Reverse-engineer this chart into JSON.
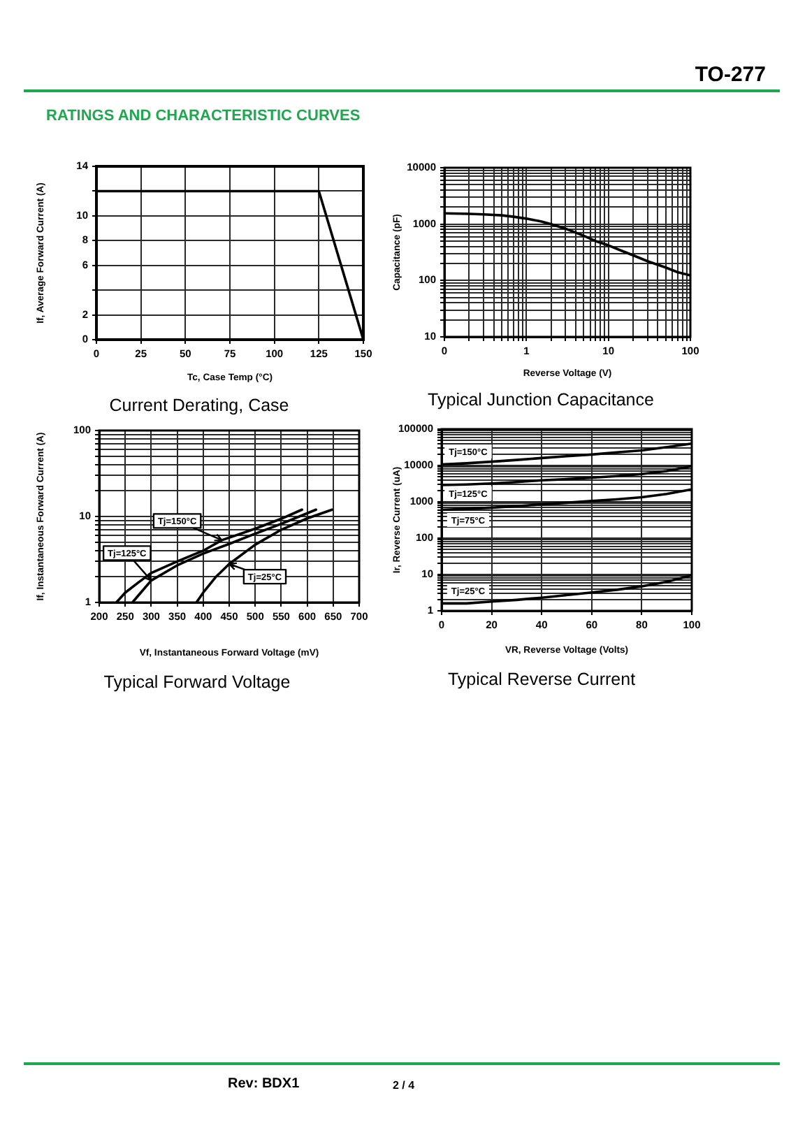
{
  "chart_data": [
    {
      "type": "line",
      "title": "Current Derating, Case",
      "xlabel": "Tc, Case Temp (°C)",
      "ylabel": "If, Average Forward Current (A)",
      "x": [
        0,
        125,
        150
      ],
      "series": [
        {
          "color": "#000000",
          "values": [
            12,
            12,
            0
          ]
        }
      ],
      "xlim": [
        0,
        150
      ],
      "xticks": [
        0,
        25,
        50,
        75,
        100,
        125,
        150
      ],
      "ylim": [
        0,
        14
      ],
      "yticks": [
        0,
        2,
        {
          "value": 4,
          "label": null
        },
        6,
        8,
        10,
        {
          "value": 12,
          "label": null
        },
        14
      ],
      "grid": true,
      "annotations": [
        "TO-277",
        "RATINGS AND CHARACTERISTIC CURVES"
      ]
    },
    {
      "type": "line",
      "title": "Typical Junction Capacitance",
      "xlabel": "Reverse Voltage (V)",
      "ylabel": "Capacitance (pF)",
      "x": [
        0.1,
        0.2,
        0.3,
        0.5,
        0.7,
        1,
        1.5,
        2,
        3,
        5,
        7,
        10,
        15,
        20,
        30,
        50,
        70,
        100
      ],
      "series": [
        {
          "color": "#000000",
          "values": [
            1550,
            1520,
            1490,
            1430,
            1350,
            1250,
            1120,
            1000,
            830,
            620,
            500,
            420,
            330,
            280,
            220,
            170,
            140,
            123
          ]
        }
      ],
      "xlim": [
        0.1,
        100
      ],
      "xticks": [
        {
          "value": 0.1,
          "label": "0"
        },
        {
          "value": 0.2,
          "label": null
        },
        {
          "value": 0.3,
          "label": null
        },
        {
          "value": 0.4,
          "label": null
        },
        {
          "value": 0.5,
          "label": null
        },
        {
          "value": 0.6,
          "label": null
        },
        {
          "value": 0.7,
          "label": null
        },
        {
          "value": 0.8,
          "label": null
        },
        {
          "value": 0.9,
          "label": null
        },
        1,
        {
          "value": 2,
          "label": null
        },
        {
          "value": 3,
          "label": null
        },
        {
          "value": 4,
          "label": null
        },
        {
          "value": 5,
          "label": null
        },
        {
          "value": 6,
          "label": null
        },
        {
          "value": 7,
          "label": null
        },
        {
          "value": 8,
          "label": null
        },
        {
          "value": 9,
          "label": null
        },
        10,
        {
          "value": 20,
          "label": null
        },
        {
          "value": 30,
          "label": null
        },
        {
          "value": 40,
          "label": null
        },
        {
          "value": 50,
          "label": null
        },
        {
          "value": 60,
          "label": null
        },
        {
          "value": 70,
          "label": null
        },
        {
          "value": 80,
          "label": null
        },
        {
          "value": 90,
          "label": null
        },
        100
      ],
      "ylim": [
        10,
        10000
      ],
      "yticks": [
        10,
        {
          "value": 20,
          "label": null
        },
        {
          "value": 30,
          "label": null
        },
        {
          "value": 40,
          "label": null
        },
        {
          "value": 50,
          "label": null
        },
        {
          "value": 60,
          "label": null
        },
        {
          "value": 70,
          "label": null
        },
        {
          "value": 80,
          "label": null
        },
        {
          "value": 90,
          "label": null
        },
        100,
        {
          "value": 200,
          "label": null
        },
        {
          "value": 300,
          "label": null
        },
        {
          "value": 400,
          "label": null
        },
        {
          "value": 500,
          "label": null
        },
        {
          "value": 600,
          "label": null
        },
        {
          "value": 700,
          "label": null
        },
        {
          "value": 800,
          "label": null
        },
        {
          "value": 900,
          "label": null
        },
        1000,
        {
          "value": 2000,
          "label": null
        },
        {
          "value": 3000,
          "label": null
        },
        {
          "value": 4000,
          "label": null
        },
        {
          "value": 5000,
          "label": null
        },
        {
          "value": 6000,
          "label": null
        },
        {
          "value": 7000,
          "label": null
        },
        {
          "value": 8000,
          "label": null
        },
        {
          "value": 9000,
          "label": null
        },
        10000
      ],
      "log": "xy",
      "grid": true
    },
    {
      "type": "line",
      "title": "Typical Forward Voltage",
      "xlabel": "Vf, Instantaneous Forward Voltage (mV)",
      "ylabel": "If, Instantaneous Forward Current (A)",
      "series": [
        {
          "name": "Tj=150°C",
          "color": "#000000",
          "x": [
            233,
            250,
            275,
            300,
            350,
            400,
            436,
            500,
            550,
            590
          ],
          "values": [
            1,
            1.3,
            1.7,
            2.2,
            3.0,
            4.0,
            5.3,
            7.2,
            9.4,
            12
          ]
        },
        {
          "name": "Tj=125°C",
          "color": "#000000",
          "x": [
            264,
            275,
            300,
            350,
            400,
            450,
            500,
            550,
            617
          ],
          "values": [
            1,
            1.2,
            1.8,
            2.7,
            3.7,
            4.8,
            6.3,
            8.2,
            12
          ]
        },
        {
          "name": "Tj=25°C",
          "color": "#000000",
          "x": [
            387,
            400,
            425,
            450,
            500,
            550,
            600,
            648
          ],
          "values": [
            1,
            1.3,
            2.0,
            2.8,
            4.7,
            7.0,
            9.5,
            12
          ]
        }
      ],
      "xlim": [
        200,
        700
      ],
      "xticks": [
        200,
        250,
        300,
        350,
        400,
        450,
        500,
        550,
        600,
        650,
        700
      ],
      "ylim": [
        1,
        100
      ],
      "yticks": [
        1,
        {
          "value": 2,
          "label": null
        },
        {
          "value": 3,
          "label": null
        },
        {
          "value": 4,
          "label": null
        },
        {
          "value": 5,
          "label": null
        },
        {
          "value": 6,
          "label": null
        },
        {
          "value": 7,
          "label": null
        },
        {
          "value": 8,
          "label": null
        },
        {
          "value": 9,
          "label": null
        },
        10,
        {
          "value": 20,
          "label": null
        },
        {
          "value": 30,
          "label": null
        },
        {
          "value": 40,
          "label": null
        },
        {
          "value": 50,
          "label": null
        },
        {
          "value": 60,
          "label": null
        },
        {
          "value": 70,
          "label": null
        },
        {
          "value": 80,
          "label": null
        },
        {
          "value": 90,
          "label": null
        },
        100
      ],
      "log": "y",
      "grid": true
    },
    {
      "type": "line",
      "title": "Typical Reverse Current",
      "xlabel": "VR, Reverse Voltage (Volts)",
      "ylabel": "Ir, Reverse Current (uA)",
      "x": [
        0,
        10,
        20,
        30,
        40,
        50,
        60,
        70,
        80,
        90,
        100
      ],
      "series": [
        {
          "name": "Tj=150°C",
          "color": "#000000",
          "values": [
            10700,
            11500,
            12700,
            14200,
            16000,
            18000,
            20000,
            23000,
            26000,
            32000,
            40000
          ]
        },
        {
          "name": "Tj=125°C",
          "color": "#000000",
          "values": [
            2900,
            3000,
            3200,
            3500,
            3900,
            4200,
            4600,
            5100,
            5800,
            7000,
            9500
          ]
        },
        {
          "name": "Tj=75°C",
          "color": "#000000",
          "values": [
            600,
            640,
            690,
            760,
            850,
            940,
            1050,
            1170,
            1330,
            1650,
            2200
          ]
        },
        {
          "name": "Tj=25°C",
          "color": "#000000",
          "values": [
            1.6,
            1.6,
            1.8,
            2.0,
            2.3,
            2.7,
            3.2,
            3.8,
            4.7,
            6.3,
            9.5
          ]
        }
      ],
      "xlim": [
        0,
        100
      ],
      "xticks": [
        0,
        20,
        40,
        60,
        80,
        100
      ],
      "ylim": [
        1,
        100000
      ],
      "yticks": [
        1,
        {
          "value": 2,
          "label": null
        },
        {
          "value": 3,
          "label": null
        },
        {
          "value": 4,
          "label": null
        },
        {
          "value": 5,
          "label": null
        },
        {
          "value": 6,
          "label": null
        },
        {
          "value": 7,
          "label": null
        },
        {
          "value": 8,
          "label": null
        },
        {
          "value": 9,
          "label": null
        },
        10,
        {
          "value": 20,
          "label": null
        },
        {
          "value": 30,
          "label": null
        },
        {
          "value": 40,
          "label": null
        },
        {
          "value": 50,
          "label": null
        },
        {
          "value": 60,
          "label": null
        },
        {
          "value": 70,
          "label": null
        },
        {
          "value": 80,
          "label": null
        },
        {
          "value": 90,
          "label": null
        },
        100,
        {
          "value": 200,
          "label": null
        },
        {
          "value": 300,
          "label": null
        },
        {
          "value": 400,
          "label": null
        },
        {
          "value": 500,
          "label": null
        },
        {
          "value": 600,
          "label": null
        },
        {
          "value": 700,
          "label": null
        },
        {
          "value": 800,
          "label": null
        },
        {
          "value": 900,
          "label": null
        },
        1000,
        {
          "value": 2000,
          "label": null
        },
        {
          "value": 3000,
          "label": null
        },
        {
          "value": 4000,
          "label": null
        },
        {
          "value": 5000,
          "label": null
        },
        {
          "value": 6000,
          "label": null
        },
        {
          "value": 7000,
          "label": null
        },
        {
          "value": 8000,
          "label": null
        },
        {
          "value": 9000,
          "label": null
        },
        10000,
        {
          "value": 20000,
          "label": null
        },
        {
          "value": 30000,
          "label": null
        },
        {
          "value": 40000,
          "label": null
        },
        {
          "value": 50000,
          "label": null
        },
        {
          "value": 60000,
          "label": null
        },
        {
          "value": 70000,
          "label": null
        },
        {
          "value": 80000,
          "label": null
        },
        {
          "value": 90000,
          "label": null
        },
        100000
      ],
      "log": "y",
      "grid": true,
      "annotations": [
        "Rev: BDX1",
        "2 / 4"
      ]
    }
  ]
}
